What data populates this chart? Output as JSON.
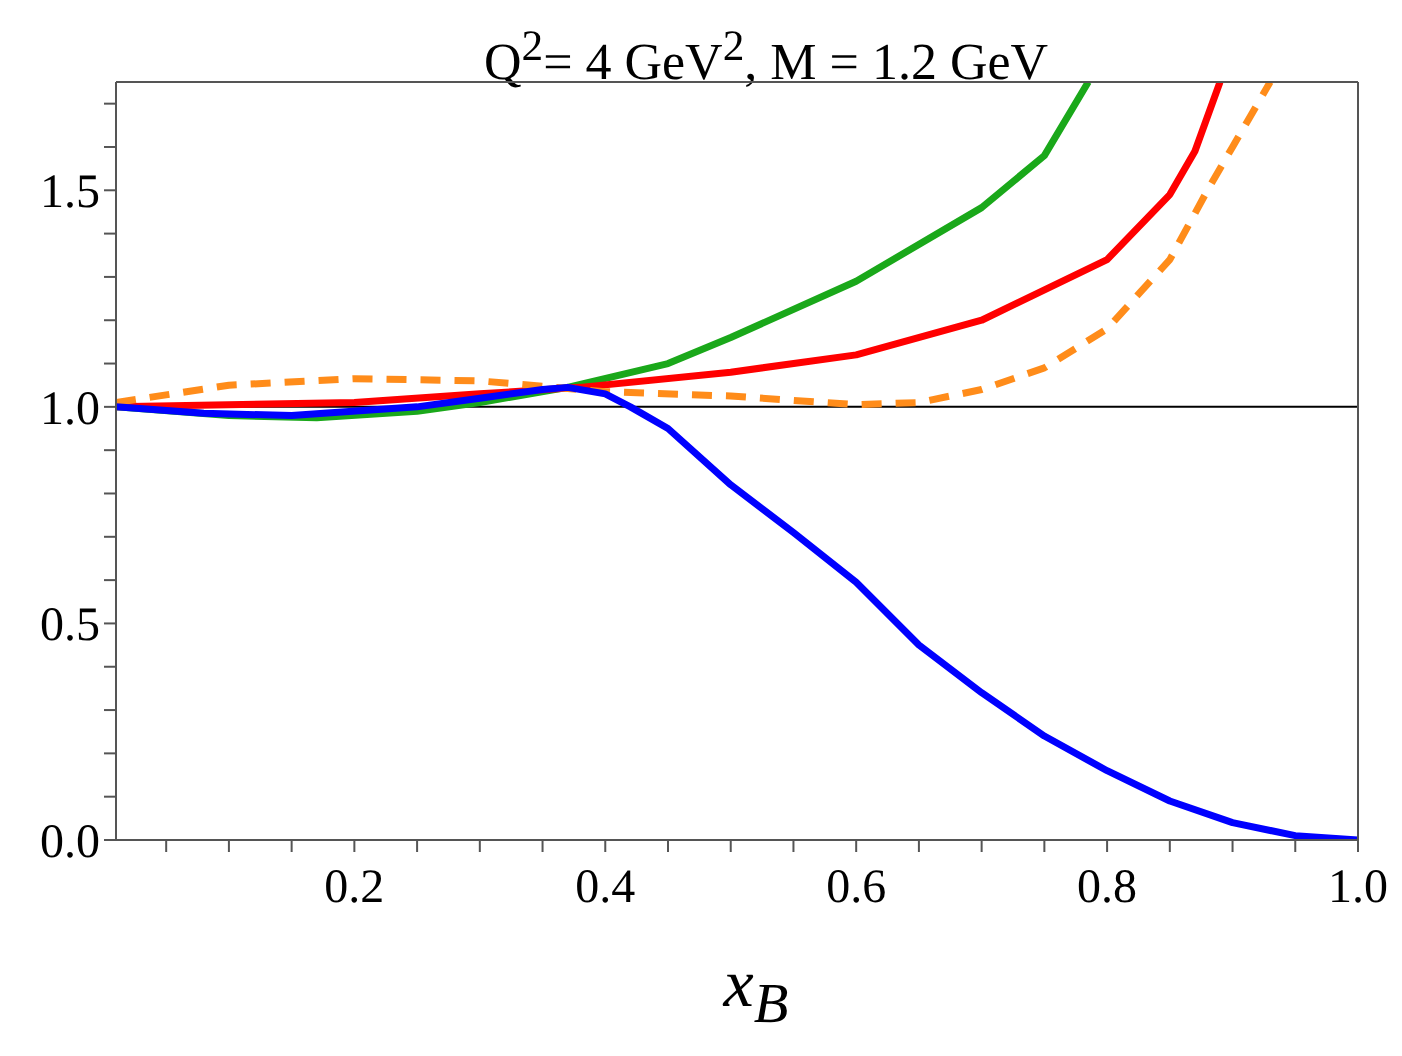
{
  "chart_data": {
    "type": "line",
    "title": "Q$^{2}$= 4 GeV$^{2}$, M = 1.2 GeV",
    "xlabel": "x$_{B}$",
    "xlim": [
      0.01,
      1
    ],
    "ylim": [
      0,
      1.75
    ],
    "xticks": [
      {
        "value": 0.05,
        "label": null
      },
      {
        "value": 0.1,
        "label": null
      },
      {
        "value": 0.15,
        "label": null
      },
      {
        "value": 0.2,
        "label": "0.2"
      },
      {
        "value": 0.25,
        "label": null
      },
      {
        "value": 0.3,
        "label": null
      },
      {
        "value": 0.35,
        "label": null
      },
      {
        "value": 0.4,
        "label": "0.4"
      },
      {
        "value": 0.45,
        "label": null
      },
      {
        "value": 0.5,
        "label": null
      },
      {
        "value": 0.55,
        "label": null
      },
      {
        "value": 0.6,
        "label": "0.6"
      },
      {
        "value": 0.65,
        "label": null
      },
      {
        "value": 0.7,
        "label": null
      },
      {
        "value": 0.75,
        "label": null
      },
      {
        "value": 0.8,
        "label": "0.8"
      },
      {
        "value": 0.85,
        "label": null
      },
      {
        "value": 0.9,
        "label": null
      },
      {
        "value": 0.95,
        "label": null
      },
      {
        "value": 1,
        "label": "1.0"
      }
    ],
    "yticks": [
      {
        "value": 0,
        "label": "0.0"
      },
      {
        "value": 0.1,
        "label": null
      },
      {
        "value": 0.2,
        "label": null
      },
      {
        "value": 0.3,
        "label": null
      },
      {
        "value": 0.4,
        "label": null
      },
      {
        "value": 0.5,
        "label": "0.5"
      },
      {
        "value": 0.6,
        "label": null
      },
      {
        "value": 0.7,
        "label": null
      },
      {
        "value": 0.8,
        "label": null
      },
      {
        "value": 0.9,
        "label": null
      },
      {
        "value": 1,
        "label": "1.0"
      },
      {
        "value": 1.1,
        "label": null
      },
      {
        "value": 1.2,
        "label": null
      },
      {
        "value": 1.3,
        "label": null
      },
      {
        "value": 1.4,
        "label": null
      },
      {
        "value": 1.5,
        "label": "1.5"
      },
      {
        "value": 1.6,
        "label": null
      },
      {
        "value": 1.7,
        "label": null
      }
    ],
    "grid": false,
    "legend": false,
    "marker": "none",
    "ref_lines": [
      {
        "axis": "y",
        "value": 1,
        "color": "#000000"
      }
    ],
    "series": [
      {
        "color": "#1aa81a",
        "line_style": "solid",
        "x": [
          0.01,
          0.1,
          0.17,
          0.25,
          0.3,
          0.37,
          0.45,
          0.5,
          0.6,
          0.7,
          0.75,
          0.785
        ],
        "values": [
          1.0,
          0.98,
          0.975,
          0.99,
          1.01,
          1.045,
          1.1,
          1.16,
          1.29,
          1.46,
          1.58,
          1.75
        ]
      },
      {
        "color": "#ff0000",
        "line_style": "solid",
        "x": [
          0.01,
          0.2,
          0.3,
          0.38,
          0.5,
          0.6,
          0.7,
          0.8,
          0.85,
          0.87,
          0.89
        ],
        "values": [
          1.0,
          1.01,
          1.03,
          1.045,
          1.08,
          1.12,
          1.2,
          1.34,
          1.49,
          1.59,
          1.75
        ]
      },
      {
        "color": "#ff8c1a",
        "line_style": "dashed",
        "x": [
          0.01,
          0.1,
          0.2,
          0.3,
          0.4,
          0.5,
          0.6,
          0.65,
          0.7,
          0.75,
          0.8,
          0.85,
          0.88,
          0.9,
          0.93
        ],
        "values": [
          1.01,
          1.05,
          1.065,
          1.06,
          1.035,
          1.025,
          1.005,
          1.01,
          1.04,
          1.09,
          1.18,
          1.34,
          1.5,
          1.6,
          1.75
        ]
      },
      {
        "color": "#0000ff",
        "line_style": "solid",
        "x": [
          0.01,
          0.08,
          0.15,
          0.25,
          0.3,
          0.35,
          0.37,
          0.4,
          0.42,
          0.45,
          0.5,
          0.55,
          0.6,
          0.65,
          0.7,
          0.75,
          0.8,
          0.85,
          0.9,
          0.95,
          1.0
        ],
        "values": [
          1.0,
          0.985,
          0.98,
          1.0,
          1.02,
          1.04,
          1.045,
          1.03,
          1.0,
          0.95,
          0.82,
          0.71,
          0.595,
          0.45,
          0.34,
          0.24,
          0.16,
          0.09,
          0.04,
          0.01,
          0.0
        ]
      }
    ]
  }
}
